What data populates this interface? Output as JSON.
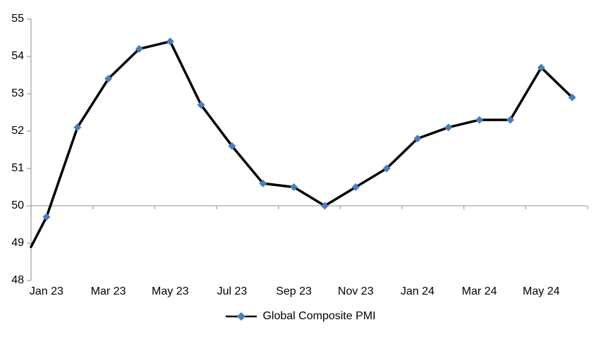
{
  "chart_data": {
    "type": "line",
    "title": "",
    "xlabel": "",
    "ylabel": "",
    "categories": [
      "Jan 23",
      "Feb 23",
      "Mar 23",
      "Apr 23",
      "May 23",
      "Jun 23",
      "Jul 23",
      "Aug 23",
      "Sep 23",
      "Oct 23",
      "Nov 23",
      "Dec 23",
      "Jan 24",
      "Feb 24",
      "Mar 24",
      "Apr 24",
      "May 24",
      "Jun 24"
    ],
    "series": [
      {
        "name": "Global Composite PMI",
        "values": [
          49.7,
          52.1,
          53.4,
          54.2,
          54.4,
          52.7,
          51.6,
          50.6,
          50.5,
          50.0,
          50.5,
          51.0,
          51.8,
          52.1,
          52.3,
          52.3,
          53.7,
          52.9
        ],
        "axis_intercept_lead_in_value": 48.9,
        "line_color": "#000000",
        "marker": "diamond",
        "marker_color": "#4A7EBB"
      }
    ],
    "x_tick_labels": [
      "Jan 23",
      "Mar 23",
      "May 23",
      "Jul 23",
      "Sep 23",
      "Nov 23",
      "Jan 24",
      "Mar 24",
      "May 24"
    ],
    "x_label_interval": 2,
    "y_ticks": [
      48,
      49,
      50,
      51,
      52,
      53,
      54,
      55
    ],
    "ylim": [
      48,
      55
    ],
    "x_axis_crosses_at": 50,
    "grid": "off",
    "axis_color": "#A6A6A6",
    "legend": {
      "position": "bottom-center",
      "label": "Global Composite PMI"
    }
  }
}
